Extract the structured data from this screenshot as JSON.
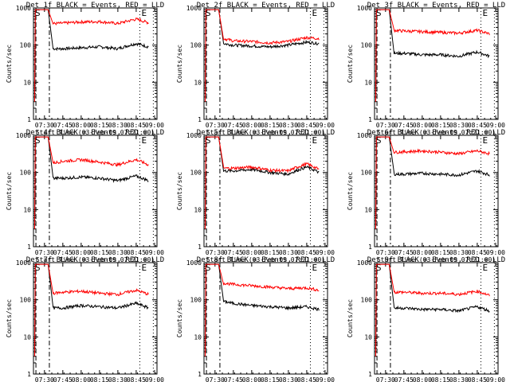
{
  "colors": {
    "events": "#000000",
    "lld": "#ff0000",
    "axis": "#000000"
  },
  "ylabel": "Counts/sec",
  "xlabel": "Start Time (03-Feb-09 07:21:00)",
  "marker_s": "S",
  "marker_e": "E",
  "x_ticks": [
    "07:30",
    "07:45",
    "08:00",
    "08:15",
    "08:30",
    "08:45",
    "09:00"
  ],
  "y_ticks": [
    "1",
    "10",
    "100",
    "1000"
  ],
  "chart_data": [
    {
      "type": "line",
      "title": "Det 1f BLACK = Events, RED = LLD",
      "ylim": [
        1,
        1000
      ],
      "yscale": "log",
      "series": [
        {
          "name": "Events",
          "x": [
            "07:37",
            "07:45",
            "08:00",
            "08:15",
            "08:30",
            "08:45",
            "08:55"
          ],
          "values": [
            80,
            80,
            85,
            90,
            80,
            110,
            90
          ]
        },
        {
          "name": "LLD",
          "x": [
            "07:37",
            "07:45",
            "08:00",
            "08:15",
            "08:30",
            "08:45",
            "08:55"
          ],
          "values": [
            380,
            390,
            420,
            430,
            380,
            500,
            400
          ]
        }
      ]
    },
    {
      "type": "line",
      "title": "Det 2f BLACK = Events, RED = LLD",
      "ylim": [
        1,
        1000
      ],
      "yscale": "log",
      "series": [
        {
          "name": "Events",
          "x": [
            "07:37",
            "07:45",
            "08:00",
            "08:15",
            "08:30",
            "08:45",
            "08:55"
          ],
          "values": [
            110,
            100,
            95,
            90,
            100,
            120,
            110
          ]
        },
        {
          "name": "LLD",
          "x": [
            "07:37",
            "07:45",
            "08:00",
            "08:15",
            "08:30",
            "08:45",
            "08:55"
          ],
          "values": [
            150,
            130,
            125,
            115,
            125,
            160,
            150
          ]
        }
      ]
    },
    {
      "type": "line",
      "title": "Det 3f BLACK = Events, RED = LLD",
      "ylim": [
        1,
        1000
      ],
      "yscale": "log",
      "series": [
        {
          "name": "Events",
          "x": [
            "07:37",
            "07:45",
            "08:00",
            "08:15",
            "08:30",
            "08:45",
            "08:55"
          ],
          "values": [
            60,
            60,
            55,
            55,
            50,
            65,
            50
          ]
        },
        {
          "name": "LLD",
          "x": [
            "07:37",
            "07:45",
            "08:00",
            "08:15",
            "08:30",
            "08:45",
            "08:55"
          ],
          "values": [
            250,
            240,
            230,
            220,
            210,
            250,
            200
          ]
        }
      ]
    },
    {
      "type": "line",
      "title": "Det 4f BLACK = Events, RED = LLD",
      "ylim": [
        1,
        1000
      ],
      "yscale": "log",
      "series": [
        {
          "name": "Events",
          "x": [
            "07:37",
            "07:45",
            "08:00",
            "08:15",
            "08:30",
            "08:45",
            "08:55"
          ],
          "values": [
            70,
            70,
            75,
            70,
            60,
            80,
            60
          ]
        },
        {
          "name": "LLD",
          "x": [
            "07:37",
            "07:45",
            "08:00",
            "08:15",
            "08:30",
            "08:45",
            "08:55"
          ],
          "values": [
            180,
            200,
            220,
            190,
            160,
            220,
            160
          ]
        }
      ]
    },
    {
      "type": "line",
      "title": "Det 5f BLACK = Events, RED = LLD",
      "ylim": [
        1,
        1000
      ],
      "yscale": "log",
      "series": [
        {
          "name": "Events",
          "x": [
            "07:37",
            "07:45",
            "08:00",
            "08:15",
            "08:30",
            "08:45",
            "08:55"
          ],
          "values": [
            110,
            110,
            120,
            100,
            90,
            140,
            100
          ]
        },
        {
          "name": "LLD",
          "x": [
            "07:37",
            "07:45",
            "08:00",
            "08:15",
            "08:30",
            "08:45",
            "08:55"
          ],
          "values": [
            130,
            130,
            140,
            115,
            110,
            170,
            120
          ]
        }
      ]
    },
    {
      "type": "line",
      "title": "Det 6f BLACK = Events, RED = LLD",
      "ylim": [
        1,
        1000
      ],
      "yscale": "log",
      "series": [
        {
          "name": "Events",
          "x": [
            "07:37",
            "07:45",
            "08:00",
            "08:15",
            "08:30",
            "08:45",
            "08:55"
          ],
          "values": [
            90,
            90,
            95,
            90,
            85,
            110,
            85
          ]
        },
        {
          "name": "LLD",
          "x": [
            "07:37",
            "07:45",
            "08:00",
            "08:15",
            "08:30",
            "08:45",
            "08:55"
          ],
          "values": [
            350,
            360,
            380,
            350,
            320,
            380,
            320
          ]
        }
      ]
    },
    {
      "type": "line",
      "title": "Det 7f BLACK = Events, RED = LLD",
      "ylim": [
        1,
        1000
      ],
      "yscale": "log",
      "series": [
        {
          "name": "Events",
          "x": [
            "07:37",
            "07:45",
            "08:00",
            "08:15",
            "08:30",
            "08:45",
            "08:55"
          ],
          "values": [
            60,
            60,
            70,
            65,
            60,
            80,
            60
          ]
        },
        {
          "name": "LLD",
          "x": [
            "07:37",
            "07:45",
            "08:00",
            "08:15",
            "08:30",
            "08:45",
            "08:55"
          ],
          "values": [
            150,
            160,
            170,
            150,
            140,
            180,
            140
          ]
        }
      ]
    },
    {
      "type": "line",
      "title": "Det 8f BLACK = Events, RED = LLD",
      "ylim": [
        1,
        1000
      ],
      "yscale": "log",
      "series": [
        {
          "name": "Events",
          "x": [
            "07:37",
            "07:45",
            "08:00",
            "08:15",
            "08:30",
            "08:45",
            "08:55"
          ],
          "values": [
            90,
            80,
            70,
            65,
            60,
            65,
            55
          ]
        },
        {
          "name": "LLD",
          "x": [
            "07:37",
            "07:45",
            "08:00",
            "08:15",
            "08:30",
            "08:45",
            "08:55"
          ],
          "values": [
            280,
            260,
            240,
            220,
            200,
            210,
            180
          ]
        }
      ]
    },
    {
      "type": "line",
      "title": "Det 9f BLACK = Events, RED = LLD",
      "ylim": [
        1,
        1000
      ],
      "yscale": "log",
      "series": [
        {
          "name": "Events",
          "x": [
            "07:37",
            "07:45",
            "08:00",
            "08:15",
            "08:30",
            "08:45",
            "08:55"
          ],
          "values": [
            60,
            60,
            55,
            55,
            50,
            65,
            50
          ]
        },
        {
          "name": "LLD",
          "x": [
            "07:37",
            "07:45",
            "08:00",
            "08:15",
            "08:30",
            "08:45",
            "08:55"
          ],
          "values": [
            160,
            160,
            150,
            150,
            140,
            170,
            130
          ]
        }
      ]
    }
  ]
}
